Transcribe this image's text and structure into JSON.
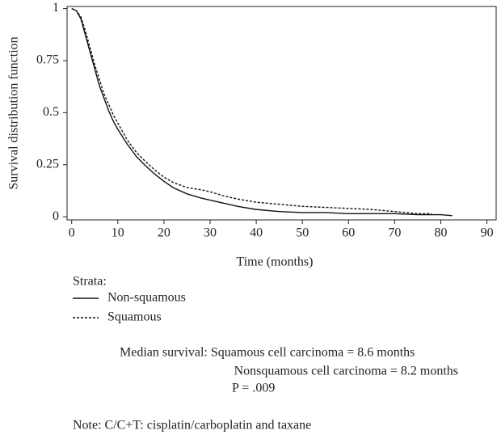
{
  "chart_data": {
    "type": "line",
    "y_label": "Survival distribution function",
    "x_label": "Time (months)",
    "legend_title": "Strata:",
    "x": [
      0,
      1,
      2,
      3,
      4,
      5,
      6,
      7,
      8,
      9,
      10,
      12,
      14,
      16,
      18,
      20,
      22,
      25,
      28,
      30,
      33,
      36,
      40,
      45,
      50,
      55,
      60,
      65,
      70,
      75,
      78,
      80,
      82.5
    ],
    "series": [
      {
        "name": "Non-squamous",
        "color": "#111111",
        "dash": "none",
        "values": [
          1,
          0.99,
          0.95,
          0.87,
          0.79,
          0.71,
          0.63,
          0.57,
          0.51,
          0.46,
          0.42,
          0.35,
          0.29,
          0.245,
          0.205,
          0.17,
          0.14,
          0.11,
          0.09,
          0.08,
          0.065,
          0.05,
          0.035,
          0.025,
          0.02,
          0.02,
          0.015,
          0.015,
          0.015,
          0.01,
          0.01,
          0.01,
          0.005
        ]
      },
      {
        "name": "Squamous",
        "color": "#111111",
        "dash": "3,2",
        "values": [
          1,
          0.99,
          0.96,
          0.89,
          0.81,
          0.73,
          0.66,
          0.59,
          0.54,
          0.49,
          0.45,
          0.37,
          0.31,
          0.265,
          0.225,
          0.19,
          0.165,
          0.14,
          0.13,
          0.12,
          0.1,
          0.085,
          0.07,
          0.06,
          0.05,
          0.045,
          0.04,
          0.035,
          0.025,
          0.015,
          0.015,
          null,
          null
        ]
      }
    ],
    "xlim": [
      -1,
      92
    ],
    "xticks": [
      0,
      10,
      20,
      30,
      40,
      50,
      60,
      70,
      80,
      90
    ],
    "ylim": [
      -0.015,
      1.01
    ],
    "yticks": [
      0,
      0.25,
      0.5,
      0.75,
      1
    ],
    "notes": [
      "Median survival: Squamous cell carcinoma = 8.6 months",
      "Nonsquamous cell carcinoma = 8.2 months",
      "P = .009",
      "Note: C/C+T: cisplatin/carboplatin and taxane"
    ]
  }
}
